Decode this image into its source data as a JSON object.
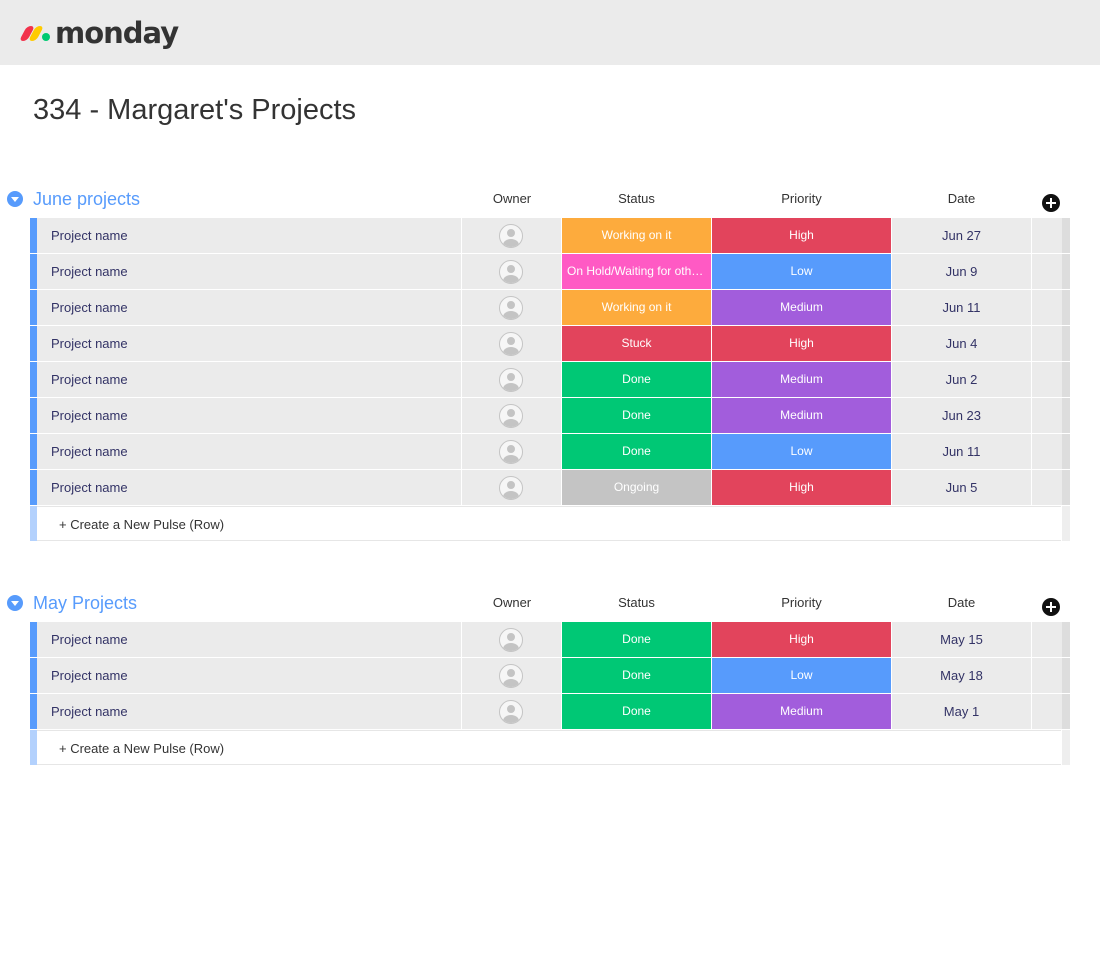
{
  "app": {
    "logo_text": "monday"
  },
  "page": {
    "title": "334 - Margaret's Projects"
  },
  "columns": {
    "owner": "Owner",
    "status": "Status",
    "priority": "Priority",
    "date": "Date"
  },
  "create_label": "+ Create a New Pulse (Row)",
  "colors": {
    "Working on it": "#fdab3d",
    "On Hold/Waiting for others": "#ff5ac4",
    "Stuck": "#e2445c",
    "Done": "#00c875",
    "Ongoing": "#c4c4c4",
    "High": "#e2445c",
    "Low": "#579bfc",
    "Medium": "#a25ddc",
    "accent": "#579bfc"
  },
  "groups": [
    {
      "title": "June projects",
      "rows": [
        {
          "name": "Project name",
          "status": "Working on it",
          "priority": "High",
          "date": "Jun 27"
        },
        {
          "name": "Project name",
          "status": "On Hold/Waiting for others",
          "priority": "Low",
          "date": "Jun 9"
        },
        {
          "name": "Project name",
          "status": "Working on it",
          "priority": "Medium",
          "date": "Jun 11"
        },
        {
          "name": "Project name",
          "status": "Stuck",
          "priority": "High",
          "date": "Jun 4"
        },
        {
          "name": "Project name",
          "status": "Done",
          "priority": "Medium",
          "date": "Jun 2"
        },
        {
          "name": "Project name",
          "status": "Done",
          "priority": "Medium",
          "date": "Jun 23"
        },
        {
          "name": "Project name",
          "status": "Done",
          "priority": "Low",
          "date": "Jun 11"
        },
        {
          "name": "Project name",
          "status": "Ongoing",
          "priority": "High",
          "date": "Jun 5"
        }
      ]
    },
    {
      "title": "May Projects",
      "rows": [
        {
          "name": "Project name",
          "status": "Done",
          "priority": "High",
          "date": "May 15"
        },
        {
          "name": "Project name",
          "status": "Done",
          "priority": "Low",
          "date": "May 18"
        },
        {
          "name": "Project name",
          "status": "Done",
          "priority": "Medium",
          "date": "May 1"
        }
      ]
    }
  ]
}
